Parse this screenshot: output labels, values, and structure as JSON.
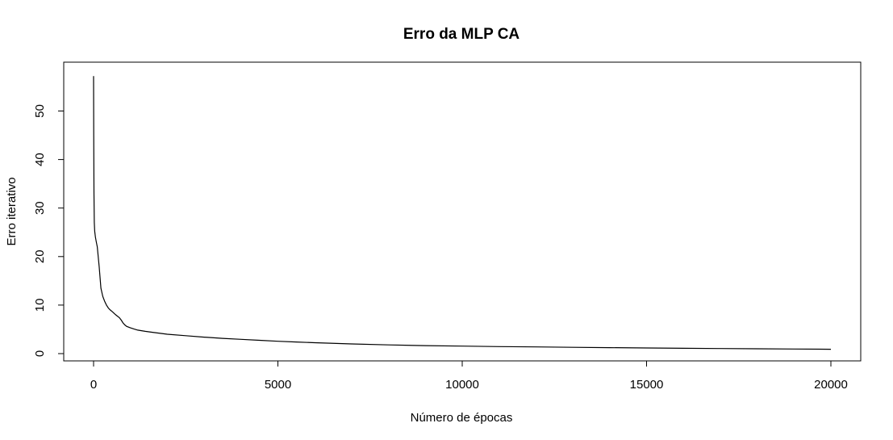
{
  "chart_data": {
    "type": "line",
    "title": "Erro da MLP CA",
    "xlabel": "Número de épocas",
    "ylabel": "Erro iterativo",
    "xlim": [
      0,
      20000
    ],
    "ylim": [
      0,
      57
    ],
    "xticks": [
      "0",
      "5000",
      "10000",
      "15000",
      "20000"
    ],
    "yticks": [
      "0",
      "10",
      "20",
      "30",
      "40",
      "50"
    ],
    "grid": false,
    "legend": "none",
    "line_color": "#000000",
    "series": [
      {
        "x": [
          0,
          5,
          10,
          20,
          30,
          50,
          75,
          100,
          150,
          200,
          250,
          300,
          350,
          400,
          450,
          500,
          600,
          700,
          750,
          800,
          850,
          900,
          1000,
          1100,
          1200,
          1400,
          1600,
          2000,
          2500,
          3000,
          3500,
          4000,
          4500,
          5000,
          5500,
          6000,
          7000,
          8000,
          9000,
          10000,
          11000,
          12000,
          13000,
          14000,
          15000,
          16000,
          17000,
          18000,
          19000,
          20000
        ],
        "y": [
          57.2,
          45.0,
          33.0,
          27.0,
          25.2,
          24.0,
          23.0,
          22.0,
          18.0,
          13.5,
          11.8,
          10.8,
          10.0,
          9.4,
          9.0,
          8.7,
          8.0,
          7.4,
          6.9,
          6.3,
          5.9,
          5.6,
          5.3,
          5.05,
          4.85,
          4.6,
          4.4,
          4.0,
          3.7,
          3.4,
          3.15,
          2.95,
          2.75,
          2.55,
          2.4,
          2.25,
          2.0,
          1.8,
          1.65,
          1.55,
          1.45,
          1.38,
          1.3,
          1.23,
          1.17,
          1.1,
          1.05,
          1.0,
          0.95,
          0.9
        ]
      }
    ]
  }
}
